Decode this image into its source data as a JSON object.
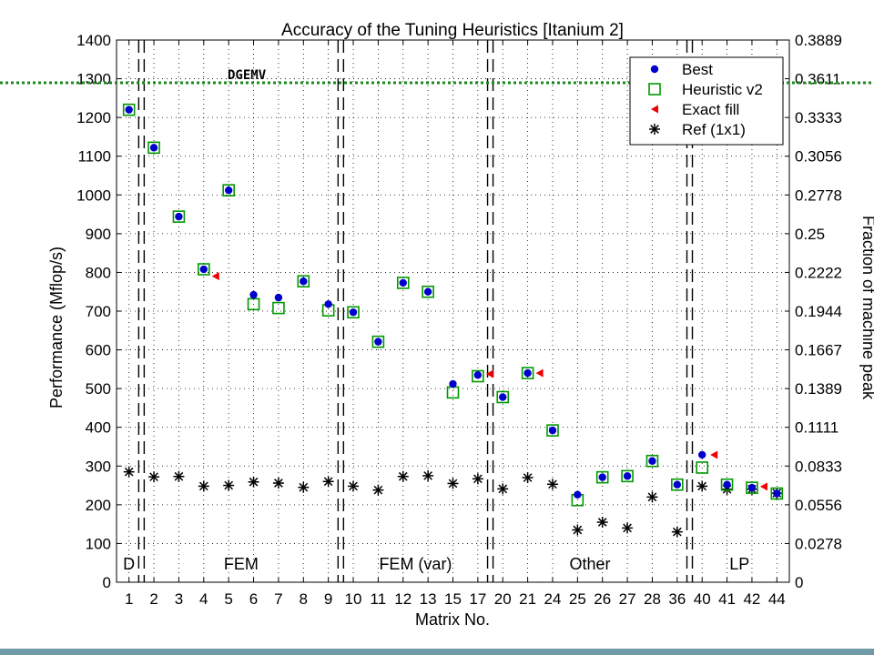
{
  "annotation": "DGEMV",
  "chart_data": {
    "type": "scatter",
    "title": "Accuracy of the Tuning Heuristics [Itanium 2]",
    "xlabel": "Matrix No.",
    "ylabel": "Performance (Mflop/s)",
    "y2label": "Fraction of machine peak",
    "categories": [
      "1",
      "2",
      "3",
      "4",
      "5",
      "6",
      "7",
      "8",
      "9",
      "10",
      "11",
      "12",
      "13",
      "15",
      "17",
      "20",
      "21",
      "24",
      "25",
      "26",
      "27",
      "28",
      "36",
      "40",
      "41",
      "42",
      "44"
    ],
    "ylim": [
      0,
      1400
    ],
    "yticks": [
      0,
      100,
      200,
      300,
      400,
      500,
      600,
      700,
      800,
      900,
      1000,
      1100,
      1200,
      1300,
      1400
    ],
    "y2ticks": [
      "0",
      "0.0278",
      "0.0556",
      "0.0833",
      "0.1111",
      "0.1389",
      "0.1667",
      "0.1944",
      "0.2222",
      "0.25",
      "0.2778",
      "0.3056",
      "0.3333",
      "0.3611",
      "0.3889"
    ],
    "grid": true,
    "legend_position": "top-right",
    "groups": [
      {
        "label": "D",
        "start": 0,
        "end": 0
      },
      {
        "label": "FEM",
        "start": 1,
        "end": 8
      },
      {
        "label": "FEM (var)",
        "start": 9,
        "end": 14
      },
      {
        "label": "Other",
        "start": 15,
        "end": 22
      },
      {
        "label": "LP",
        "start": 23,
        "end": 26
      }
    ],
    "series": [
      {
        "name": "Best",
        "color": "#0000cc",
        "marker": "dot",
        "values": [
          1220,
          1122,
          944,
          808,
          1012,
          742,
          735,
          777,
          718,
          697,
          621,
          773,
          750,
          512,
          535,
          478,
          540,
          392,
          226,
          271,
          274,
          313,
          252,
          329,
          252,
          244,
          229
        ]
      },
      {
        "name": "Heuristic v2",
        "color": "#009900",
        "marker": "square",
        "values": [
          1220,
          1122,
          944,
          808,
          1012,
          718,
          708,
          777,
          702,
          697,
          621,
          773,
          750,
          490,
          532,
          478,
          540,
          392,
          212,
          271,
          274,
          313,
          252,
          296,
          252,
          244,
          229
        ]
      },
      {
        "name": "Exact fill",
        "color": "#ee0000",
        "marker": "triangle",
        "values": [
          null,
          null,
          null,
          790,
          null,
          null,
          null,
          null,
          null,
          null,
          null,
          null,
          null,
          null,
          538,
          null,
          540,
          null,
          null,
          null,
          null,
          null,
          null,
          329,
          null,
          247,
          null
        ]
      },
      {
        "name": "Ref (1x1)",
        "color": "#000000",
        "marker": "star",
        "values": [
          285,
          272,
          273,
          248,
          250,
          259,
          256,
          245,
          260,
          248,
          238,
          273,
          275,
          255,
          267,
          241,
          270,
          253,
          135,
          155,
          140,
          220,
          130,
          248,
          240,
          240,
          230
        ]
      }
    ]
  }
}
